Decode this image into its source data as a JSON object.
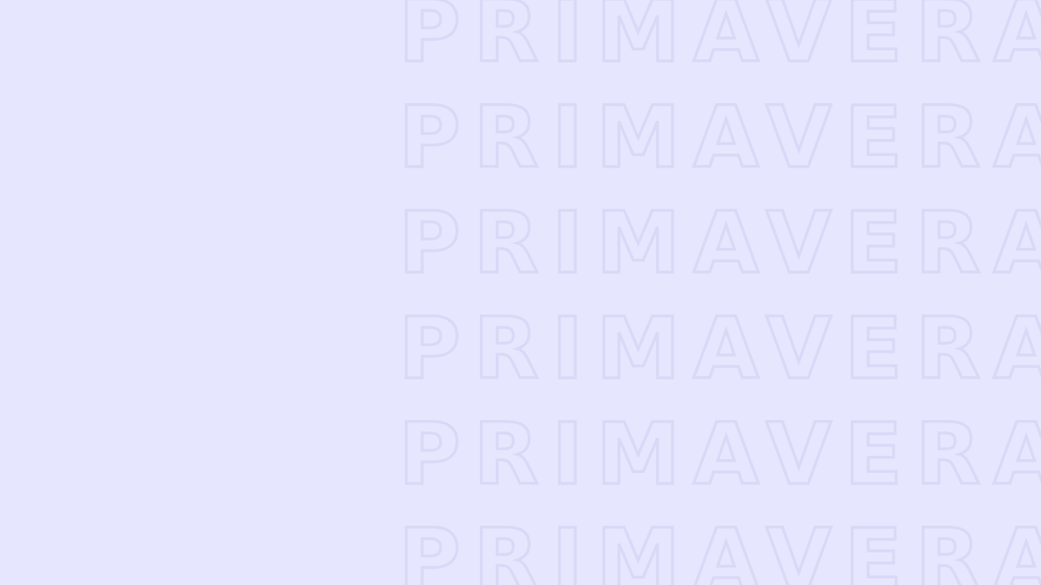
{
  "background_text": [
    "PRIMAVERA",
    "PRIMAVERA",
    "PRIMAVERA",
    "PRIMAVERA",
    "PRIMAVERA",
    "PRIMAVERA"
  ]
}
